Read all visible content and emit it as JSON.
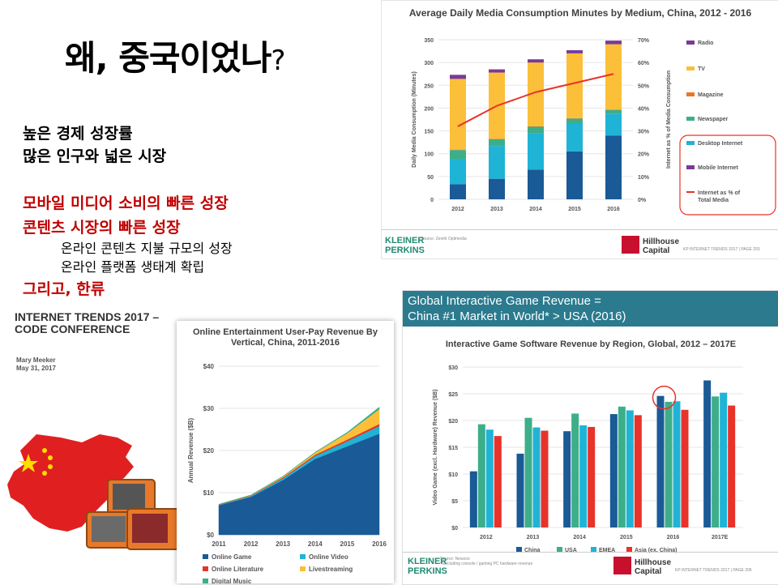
{
  "slide": {
    "title": "왜, 중국이었나",
    "title_q": "?",
    "lines": [
      {
        "text": "높은 경제 성장률"
      },
      {
        "text": "많은 인구와 넓은 시장"
      },
      {
        "text": "모바일 미디어 소비의 빠른 성장"
      },
      {
        "text": "콘텐츠 시장의 빠른 성장"
      },
      {
        "text": "온라인 콘텐츠 지불 규모의 성장"
      },
      {
        "text": "온라인 플랫폼 생태계 확립"
      },
      {
        "text": "그리고, 한류"
      }
    ],
    "colors": {
      "accent_red": "#c00000"
    }
  },
  "report": {
    "title_line1": "INTERNET TRENDS 2017 –",
    "title_line2": "CODE CONFERENCE",
    "author": "Mary Meeker",
    "date": "May 31, 2017"
  },
  "footer": {
    "kleiner1": "KLEINER",
    "kleiner2": "PERKINS",
    "hill1": "Hillhouse",
    "hill2": "Capital",
    "source_top": "Source: Zenith Optimedia",
    "page_top": "KP INTERNET TRENDS 2017 | PAGE 203",
    "source_bottom": "Source: Newzoo",
    "source_bottom2": "* Excluding console / gaming PC hardware revenue",
    "page_bottom": "KP INTERNET TRENDS 2017 | PAGE 206"
  },
  "chart_data": [
    {
      "type": "bar",
      "title": "Average Daily Media Consumption Minutes by Medium, China, 2012 - 2016",
      "ylabel": "Daily Media Consumption (Minutes)",
      "y2label": "Internet as % of Media Consumption",
      "categories": [
        "2012",
        "2013",
        "2014",
        "2015",
        "2016"
      ],
      "ylim": [
        0,
        350
      ],
      "yticks": [
        "0",
        "50",
        "100",
        "150",
        "200",
        "250",
        "300",
        "350"
      ],
      "y2ticks": [
        "0%",
        "10%",
        "20%",
        "30%",
        "40%",
        "50%",
        "60%",
        "70%"
      ],
      "series": [
        {
          "name": "Mobile Internet",
          "color": "#1a5a96",
          "values": [
            33,
            45,
            65,
            105,
            140
          ]
        },
        {
          "name": "Desktop Internet",
          "color": "#1fb3d6",
          "values": [
            55,
            72,
            80,
            62,
            48
          ]
        },
        {
          "name": "Newspaper",
          "color": "#3dae8a",
          "values": [
            20,
            15,
            14,
            10,
            8
          ]
        },
        {
          "name": "Magazine",
          "color": "#e87722",
          "values": [
            1,
            1,
            1,
            1,
            1
          ]
        },
        {
          "name": "TV",
          "color": "#fbbf3a",
          "values": [
            155,
            145,
            140,
            142,
            143
          ]
        },
        {
          "name": "Radio",
          "color": "#7a3a96",
          "values": [
            9,
            7,
            7,
            7,
            8
          ]
        }
      ],
      "line": {
        "name": "Internet as % of Total Media",
        "color": "#e8332a",
        "values": [
          32,
          41,
          47,
          51,
          55
        ]
      },
      "legend": [
        "Radio",
        "TV",
        "Magazine",
        "Newspaper",
        "Desktop Internet",
        "Mobile Internet",
        "Internet as % of Total Media"
      ]
    },
    {
      "type": "area",
      "title": "Online Entertainment User-Pay Revenue By Vertical, China, 2011-2016",
      "ylabel": "Annual Revenue ($B)",
      "x": [
        "2011",
        "2012",
        "2013",
        "2014",
        "2015",
        "2016"
      ],
      "ylim": [
        0,
        40
      ],
      "yticks": [
        "$0",
        "$10",
        "$20",
        "$30",
        "$40"
      ],
      "series": [
        {
          "name": "Online Game",
          "color": "#1a5a96",
          "values": [
            7,
            9,
            13,
            18,
            21,
            24
          ]
        },
        {
          "name": "Online Video",
          "color": "#1fb3d6",
          "values": [
            0.1,
            0.2,
            0.4,
            0.7,
            1.2,
            1.8
          ]
        },
        {
          "name": "Online Literature",
          "color": "#e8332a",
          "values": [
            0.1,
            0.1,
            0.2,
            0.3,
            0.4,
            0.5
          ]
        },
        {
          "name": "Livestreaming",
          "color": "#fbbf3a",
          "values": [
            0,
            0.1,
            0.2,
            0.5,
            1.5,
            3.5
          ]
        },
        {
          "name": "Digital Music",
          "color": "#3dae8a",
          "values": [
            0.05,
            0.05,
            0.1,
            0.1,
            0.2,
            0.5
          ]
        }
      ]
    },
    {
      "type": "bar",
      "header_line1": "Global Interactive Game Revenue =",
      "header_line2": "China #1 Market in World* > USA (2016)",
      "title": "Interactive Game Software Revenue by Region, Global, 2012 – 2017E",
      "ylabel": "Video Game (excl. Hardware) Revenue ($B)",
      "categories": [
        "2012",
        "2013",
        "2014",
        "2015",
        "2016",
        "2017E"
      ],
      "ylim": [
        0,
        30
      ],
      "yticks": [
        "$0",
        "$5",
        "$10",
        "$15",
        "$20",
        "$25",
        "$30"
      ],
      "series": [
        {
          "name": "China",
          "color": "#1a5a96",
          "values": [
            10.5,
            13.8,
            18.0,
            21.2,
            24.6,
            27.5
          ]
        },
        {
          "name": "USA",
          "color": "#3dae8a",
          "values": [
            19.3,
            20.5,
            21.3,
            22.6,
            23.5,
            24.5
          ]
        },
        {
          "name": "EMEA",
          "color": "#1fb3d6",
          "values": [
            18.3,
            18.7,
            19.1,
            21.9,
            23.6,
            25.2
          ]
        },
        {
          "name": "Asia (ex. China)",
          "color": "#e8332a",
          "values": [
            17.1,
            18.1,
            18.8,
            21.0,
            22.0,
            22.8
          ]
        }
      ]
    }
  ]
}
